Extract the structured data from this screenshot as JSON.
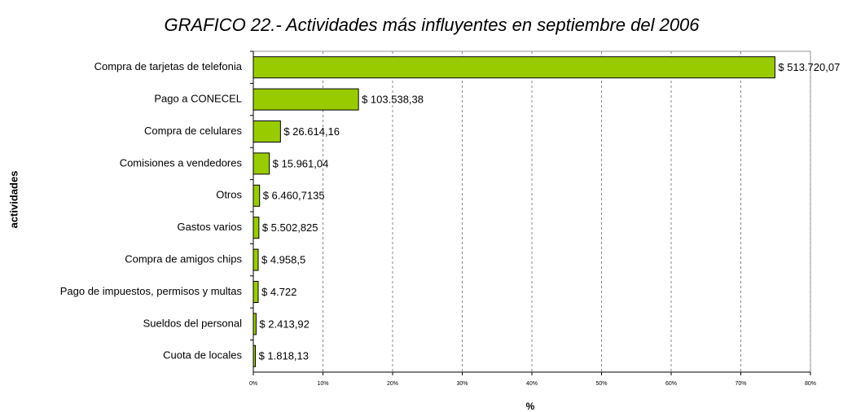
{
  "chart_data": {
    "type": "bar",
    "orientation": "horizontal",
    "title": "GRAFICO 22.-  Actividades más influyentes en septiembre del 2006",
    "xlabel": "%",
    "ylabel": "actividades",
    "categories": [
      "Compra de tarjetas de telefonia",
      "Pago a CONECEL",
      "Compra de celulares",
      "Comisiones a vendedores",
      "Otros",
      "Gastos varios",
      "Compra de amigos chips",
      "Pago de impuestos, permisos y multas",
      "Sueldos del personal",
      "Cuota de locales"
    ],
    "values": [
      74.9,
      15.1,
      3.9,
      2.3,
      0.9,
      0.8,
      0.7,
      0.7,
      0.4,
      0.3
    ],
    "bar_labels": [
      "$ 513.720,07",
      "$ 103.538,38",
      "$ 26.614,16",
      "$ 15.961,04",
      "$ 6.460,7135",
      "$ 5.502,825",
      "$ 4.958,5",
      "$ 4.722",
      "$ 2.413,92",
      "$ 1.818,13"
    ],
    "color": "#99cc00",
    "xlim": [
      0,
      80
    ],
    "xticks": [
      {
        "value": 0,
        "label": "0%"
      },
      {
        "value": 10,
        "label": "10%"
      },
      {
        "value": 20,
        "label": "20%"
      },
      {
        "value": 30,
        "label": "30%"
      },
      {
        "value": 40,
        "label": "40%"
      },
      {
        "value": 50,
        "label": "50%"
      },
      {
        "value": 60,
        "label": "60%"
      },
      {
        "value": 70,
        "label": "70%"
      },
      {
        "value": 80,
        "label": "80%"
      }
    ],
    "grid": true
  }
}
